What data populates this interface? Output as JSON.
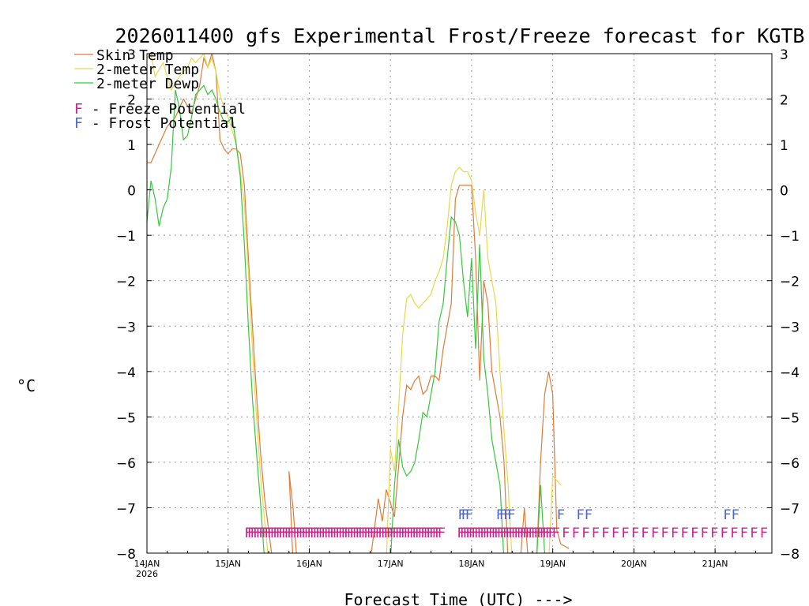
{
  "chart_data": {
    "type": "line",
    "title": "2026011400 gfs Experimental Frost/Freeze forecast for KGTB",
    "xlabel": "Forecast Time (UTC) --->",
    "ylabel": "°C",
    "ylim": [
      -8,
      3
    ],
    "yticks": [
      "3",
      "2",
      "1",
      "0",
      "−1",
      "−2",
      "−3",
      "−4",
      "−5",
      "−6",
      "−7",
      "−8"
    ],
    "xlim": [
      0,
      7.7
    ],
    "xticks": [
      {
        "label": "14JAN",
        "sub": "2026"
      },
      {
        "label": "15JAN",
        "sub": ""
      },
      {
        "label": "16JAN",
        "sub": ""
      },
      {
        "label": "17JAN",
        "sub": ""
      },
      {
        "label": "18JAN",
        "sub": ""
      },
      {
        "label": "19JAN",
        "sub": ""
      },
      {
        "label": "20JAN",
        "sub": ""
      },
      {
        "label": "21JAN",
        "sub": ""
      }
    ],
    "grid": true,
    "legend": {
      "placement": "top-left",
      "items": [
        {
          "label": "Skin Temp",
          "color": "#e07b39"
        },
        {
          "label": "2-meter Temp",
          "color": "#e8d84a"
        },
        {
          "label": "2-meter Dewp",
          "color": "#36c93a"
        }
      ],
      "markers": [
        {
          "symbol": "F",
          "text": " - Freeze Potential",
          "color": "#d21e8c"
        },
        {
          "symbol": "F",
          "text": " - Frost Potential",
          "color": "#4a66d6"
        }
      ]
    },
    "series": [
      {
        "name": "Skin Temp",
        "color": "#e07b39",
        "points": [
          [
            0,
            0.6
          ],
          [
            0.05,
            0.6
          ],
          [
            0.15,
            1.0
          ],
          [
            0.25,
            1.4
          ],
          [
            0.35,
            1.6
          ],
          [
            0.45,
            2.0
          ],
          [
            0.55,
            1.7
          ],
          [
            0.65,
            2.3
          ],
          [
            0.7,
            2.9
          ],
          [
            0.75,
            2.7
          ],
          [
            0.8,
            3.0
          ],
          [
            0.85,
            2.6
          ],
          [
            0.9,
            1.1
          ],
          [
            0.95,
            0.9
          ],
          [
            1.0,
            0.8
          ],
          [
            1.05,
            0.9
          ],
          [
            1.1,
            0.9
          ],
          [
            1.15,
            0.8
          ],
          [
            1.2,
            0.1
          ],
          [
            1.25,
            -1.5
          ],
          [
            1.3,
            -3.0
          ],
          [
            1.35,
            -4.5
          ],
          [
            1.4,
            -5.8
          ],
          [
            1.45,
            -6.8
          ],
          [
            1.5,
            -7.5
          ],
          [
            1.55,
            -8.2
          ],
          [
            1.8,
            -8.2
          ],
          [
            1.75,
            -6.2
          ],
          [
            1.8,
            -7.0
          ],
          [
            1.85,
            -8.2
          ],
          [
            2.75,
            -8.2
          ],
          [
            2.85,
            -6.8
          ],
          [
            2.9,
            -7.3
          ],
          [
            2.95,
            -6.6
          ],
          [
            3.0,
            -6.9
          ],
          [
            3.05,
            -7.2
          ],
          [
            3.1,
            -6.1
          ],
          [
            3.15,
            -5.0
          ],
          [
            3.2,
            -4.3
          ],
          [
            3.25,
            -4.4
          ],
          [
            3.3,
            -4.2
          ],
          [
            3.35,
            -4.1
          ],
          [
            3.4,
            -4.5
          ],
          [
            3.45,
            -4.4
          ],
          [
            3.5,
            -4.1
          ],
          [
            3.55,
            -4.1
          ],
          [
            3.6,
            -4.2
          ],
          [
            3.65,
            -3.5
          ],
          [
            3.7,
            -3.0
          ],
          [
            3.75,
            -2.5
          ],
          [
            3.8,
            -0.2
          ],
          [
            3.85,
            0.1
          ],
          [
            3.9,
            0.1
          ],
          [
            3.95,
            0.1
          ],
          [
            4.0,
            0.1
          ],
          [
            4.05,
            -1.5
          ],
          [
            4.1,
            -4.2
          ],
          [
            4.15,
            -2.0
          ],
          [
            4.2,
            -2.5
          ],
          [
            4.25,
            -4.0
          ],
          [
            4.3,
            -4.5
          ],
          [
            4.35,
            -5.0
          ],
          [
            4.4,
            -6.0
          ],
          [
            4.45,
            -8.2
          ],
          [
            4.6,
            -8.2
          ],
          [
            4.65,
            -7.0
          ],
          [
            4.7,
            -8.2
          ],
          [
            4.8,
            -8.2
          ],
          [
            4.85,
            -6.0
          ],
          [
            4.9,
            -4.5
          ],
          [
            4.95,
            -4.0
          ],
          [
            5.0,
            -4.5
          ],
          [
            5.05,
            -7.5
          ],
          [
            5.1,
            -7.8
          ],
          [
            5.2,
            -7.9
          ]
        ]
      },
      {
        "name": "2-meter Temp",
        "color": "#e8d84a",
        "points": [
          [
            0,
            2.9
          ],
          [
            0.05,
            3.0
          ],
          [
            0.1,
            2.5
          ],
          [
            0.2,
            2.8
          ],
          [
            0.3,
            2.2
          ],
          [
            0.4,
            2.5
          ],
          [
            0.5,
            2.7
          ],
          [
            0.55,
            2.9
          ],
          [
            0.6,
            2.8
          ],
          [
            0.7,
            3.0
          ],
          [
            0.75,
            2.7
          ],
          [
            0.8,
            2.9
          ],
          [
            0.85,
            2.6
          ],
          [
            0.9,
            2.1
          ],
          [
            0.95,
            1.8
          ],
          [
            1.0,
            1.6
          ],
          [
            1.05,
            1.3
          ],
          [
            1.1,
            1.0
          ],
          [
            1.15,
            0.4
          ],
          [
            1.2,
            -0.3
          ],
          [
            1.25,
            -1.8
          ],
          [
            1.3,
            -3.5
          ],
          [
            1.35,
            -5.0
          ],
          [
            1.4,
            -6.3
          ],
          [
            1.45,
            -7.3
          ],
          [
            1.5,
            -8.2
          ],
          [
            2.95,
            -8.2
          ],
          [
            3.0,
            -5.7
          ],
          [
            3.05,
            -6.2
          ],
          [
            3.1,
            -4.8
          ],
          [
            3.15,
            -3.2
          ],
          [
            3.2,
            -2.4
          ],
          [
            3.25,
            -2.3
          ],
          [
            3.3,
            -2.5
          ],
          [
            3.35,
            -2.6
          ],
          [
            3.4,
            -2.5
          ],
          [
            3.45,
            -2.4
          ],
          [
            3.5,
            -2.3
          ],
          [
            3.55,
            -2.0
          ],
          [
            3.6,
            -1.8
          ],
          [
            3.65,
            -1.5
          ],
          [
            3.7,
            -0.8
          ],
          [
            3.75,
            0.1
          ],
          [
            3.8,
            0.4
          ],
          [
            3.85,
            0.5
          ],
          [
            3.9,
            0.4
          ],
          [
            3.95,
            0.4
          ],
          [
            4.0,
            0.2
          ],
          [
            4.05,
            -0.5
          ],
          [
            4.1,
            -1.0
          ],
          [
            4.15,
            0.0
          ],
          [
            4.2,
            -1.5
          ],
          [
            4.25,
            -2.0
          ],
          [
            4.3,
            -2.5
          ],
          [
            4.35,
            -4.0
          ],
          [
            4.4,
            -5.3
          ],
          [
            4.45,
            -6.5
          ],
          [
            4.5,
            -8.2
          ],
          [
            4.95,
            -8.2
          ],
          [
            5.0,
            -6.3
          ],
          [
            5.05,
            -6.4
          ],
          [
            5.1,
            -6.5
          ]
        ]
      },
      {
        "name": "2-meter Dewp",
        "color": "#36c93a",
        "points": [
          [
            0,
            -0.7
          ],
          [
            0.05,
            0.2
          ],
          [
            0.1,
            -0.2
          ],
          [
            0.15,
            -0.8
          ],
          [
            0.2,
            -0.4
          ],
          [
            0.25,
            -0.2
          ],
          [
            0.3,
            0.5
          ],
          [
            0.35,
            2.2
          ],
          [
            0.4,
            1.8
          ],
          [
            0.45,
            1.1
          ],
          [
            0.5,
            1.2
          ],
          [
            0.55,
            1.6
          ],
          [
            0.6,
            2.1
          ],
          [
            0.65,
            2.2
          ],
          [
            0.7,
            2.3
          ],
          [
            0.75,
            2.1
          ],
          [
            0.8,
            2.2
          ],
          [
            0.85,
            2.0
          ],
          [
            0.9,
            1.7
          ],
          [
            0.95,
            1.5
          ],
          [
            1.0,
            1.5
          ],
          [
            1.05,
            1.6
          ],
          [
            1.1,
            1.0
          ],
          [
            1.15,
            0.3
          ],
          [
            1.2,
            -1.2
          ],
          [
            1.25,
            -3.0
          ],
          [
            1.3,
            -4.6
          ],
          [
            1.35,
            -5.8
          ],
          [
            1.4,
            -6.9
          ],
          [
            1.45,
            -8.2
          ],
          [
            3.0,
            -8.2
          ],
          [
            3.05,
            -6.5
          ],
          [
            3.1,
            -5.5
          ],
          [
            3.15,
            -6.1
          ],
          [
            3.2,
            -6.3
          ],
          [
            3.25,
            -6.2
          ],
          [
            3.3,
            -6.0
          ],
          [
            3.35,
            -5.5
          ],
          [
            3.4,
            -4.9
          ],
          [
            3.45,
            -5.0
          ],
          [
            3.5,
            -4.5
          ],
          [
            3.55,
            -4.0
          ],
          [
            3.6,
            -2.9
          ],
          [
            3.65,
            -2.5
          ],
          [
            3.7,
            -1.5
          ],
          [
            3.75,
            -0.6
          ],
          [
            3.8,
            -0.7
          ],
          [
            3.85,
            -1.0
          ],
          [
            3.9,
            -2.0
          ],
          [
            3.95,
            -2.8
          ],
          [
            4.0,
            -1.5
          ],
          [
            4.05,
            -3.5
          ],
          [
            4.1,
            -1.2
          ],
          [
            4.15,
            -3.7
          ],
          [
            4.2,
            -4.5
          ],
          [
            4.25,
            -5.5
          ],
          [
            4.3,
            -6.0
          ],
          [
            4.35,
            -6.5
          ],
          [
            4.4,
            -8.2
          ],
          [
            4.8,
            -8.2
          ],
          [
            4.85,
            -6.5
          ],
          [
            4.9,
            -8.0
          ],
          [
            5.0,
            -8.2
          ]
        ]
      }
    ],
    "freeze_marks": {
      "symbol": "F",
      "color": "#d21e8c",
      "y": -7.55,
      "x_ranges": [
        [
          1.25,
          3.63
        ],
        [
          3.87,
          5.0
        ]
      ]
    },
    "freeze_marks_spaced": {
      "symbol": "F",
      "color": "#d21e8c",
      "y": -7.55,
      "x_range": [
        5.04,
        7.62
      ]
    },
    "frost_marks": {
      "symbol": "F",
      "color": "#4a66d6",
      "y": -7.15,
      "x_values": [
        3.88,
        3.92,
        3.97,
        4.35,
        4.39,
        4.44,
        4.49,
        5.1,
        5.34,
        5.44,
        7.15,
        7.25
      ]
    }
  }
}
